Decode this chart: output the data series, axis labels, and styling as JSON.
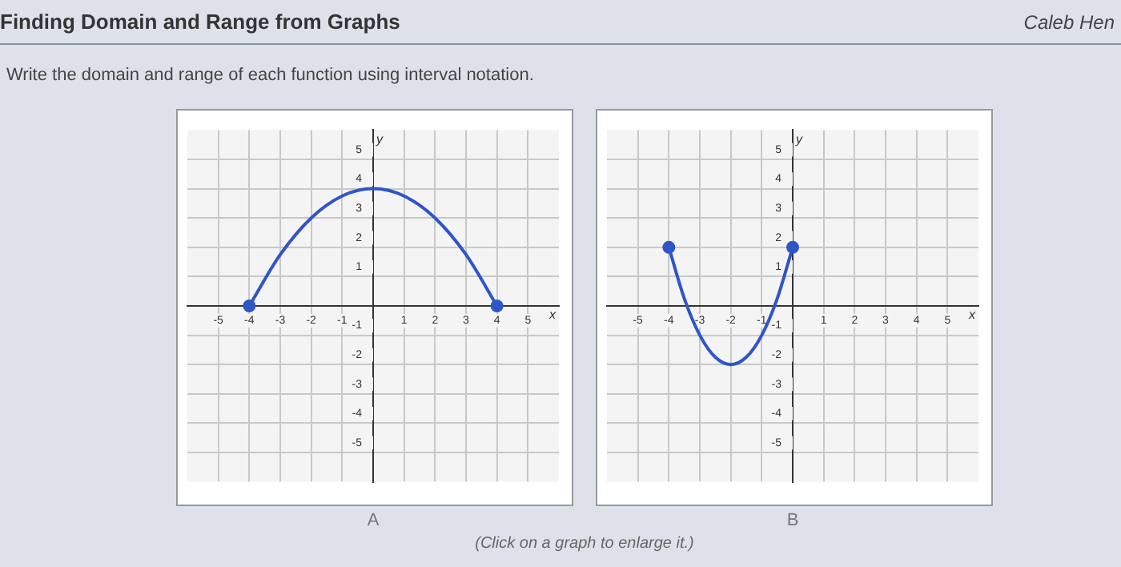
{
  "chart_data": [
    {
      "type": "line",
      "title": "Finding Domain and Range from Graphs",
      "subtitle": "Write the domain and range of each function using interval notation.",
      "xlabel": "x",
      "ylabel": "y",
      "annotations": [
        "A",
        "Caleb Hen"
      ],
      "xlim": [
        -6,
        6
      ],
      "ylim": [
        -6,
        6
      ],
      "xticks": [
        -5,
        -4,
        -3,
        -2,
        -1,
        {
          "value": 0,
          "label": null
        },
        1,
        2,
        3,
        4,
        5
      ],
      "yticks": [
        -5,
        -4,
        -3,
        -2,
        -1,
        {
          "value": 0,
          "label": null
        },
        1,
        2,
        3,
        4,
        5
      ],
      "grid": true,
      "series": [
        {
          "type": "line",
          "color": "#2f55c8",
          "marker": "none",
          "x": [
            -4,
            -3,
            -2,
            -1,
            0,
            1,
            2,
            3,
            4
          ],
          "values": [
            0,
            1.75,
            3,
            3.75,
            4,
            3.75,
            3,
            1.75,
            0
          ]
        },
        {
          "type": "scatter",
          "color": "#2f55c8",
          "marker": "circle",
          "x": [
            -4,
            4
          ],
          "values": [
            0,
            0
          ]
        }
      ]
    },
    {
      "type": "line",
      "xlabel": "x",
      "ylabel": "y",
      "annotations": [
        "B",
        "(Click on a graph to enlarge it.)"
      ],
      "xlim": [
        -6,
        6
      ],
      "ylim": [
        -6,
        6
      ],
      "xticks": [
        -5,
        -4,
        -3,
        -2,
        -1,
        {
          "value": 0,
          "label": null
        },
        1,
        2,
        3,
        4,
        5
      ],
      "yticks": [
        -5,
        -4,
        -3,
        -2,
        -1,
        {
          "value": 0,
          "label": null
        },
        1,
        2,
        3,
        4,
        5
      ],
      "grid": true,
      "series": [
        {
          "type": "line",
          "color": "#2f55c8",
          "marker": "none",
          "x": [
            -4,
            -3.5,
            -3,
            -2.5,
            -2,
            -1.5,
            -1,
            -0.5,
            0
          ],
          "values": [
            2,
            0.25,
            -1,
            -1.75,
            -2,
            -1.75,
            -1,
            0.25,
            2
          ]
        },
        {
          "type": "scatter",
          "color": "#2f55c8",
          "marker": "circle",
          "x": [
            -4,
            0
          ],
          "values": [
            2,
            2
          ]
        }
      ]
    }
  ]
}
